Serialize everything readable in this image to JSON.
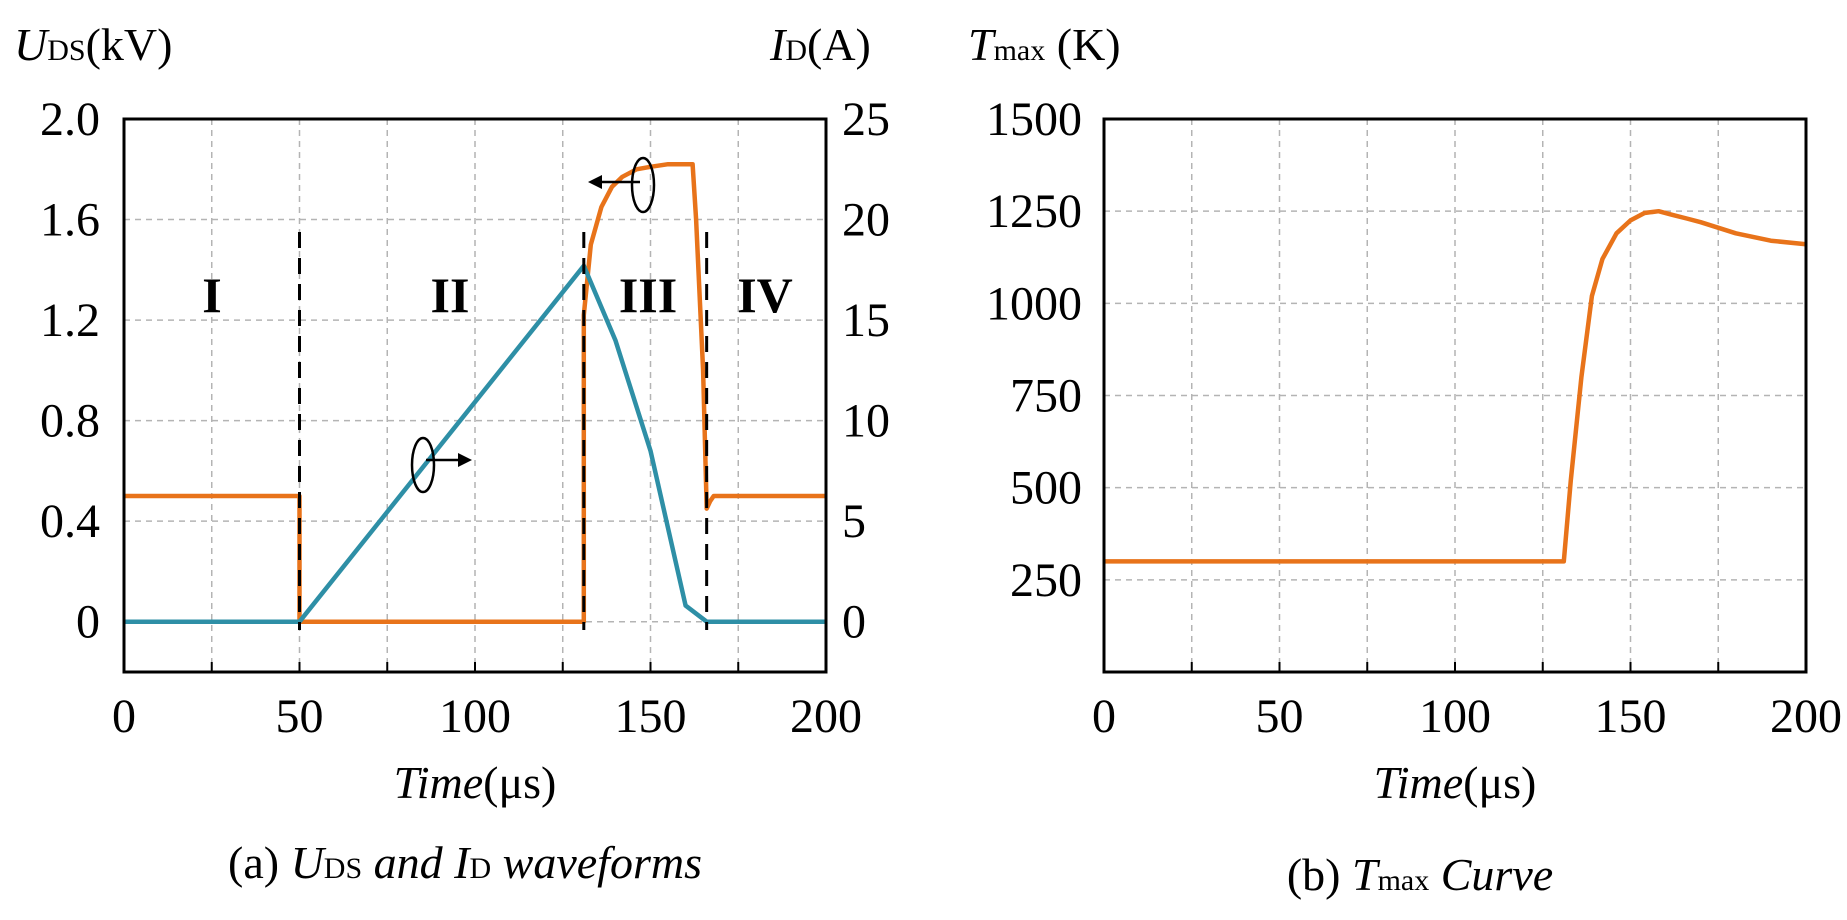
{
  "colors": {
    "orange": "#E8731A",
    "teal": "#2E8FA6",
    "grid": "#b4b4b4",
    "axis": "#000000"
  },
  "panel_a": {
    "caption": {
      "prefix": "(a) ",
      "u": "U",
      "u_sub": "DS",
      "mid": " and ",
      "i": "I",
      "i_sub": "D",
      "suffix": " waveforms"
    },
    "ylabel_left": {
      "main": "U",
      "sub": "DS",
      "unit": "(kV)"
    },
    "ylabel_right": {
      "main": "I",
      "sub": "D",
      "unit": "(A)"
    },
    "xlabel": {
      "main": "Time",
      "unit": "(μs)"
    },
    "regions": [
      "I",
      "II",
      "III",
      "IV"
    ]
  },
  "panel_b": {
    "caption": {
      "prefix": "(b) ",
      "t": "T",
      "t_sub": "max",
      "suffix": " Curve"
    },
    "ylabel": {
      "main": "T",
      "sub": "max",
      "unit": " (K)"
    },
    "xlabel": {
      "main": "Time",
      "unit": "(μs)"
    }
  },
  "chart_data": [
    {
      "type": "line",
      "x_ticks": [
        "0",
        "50",
        "100",
        "150",
        "200"
      ],
      "xlim": [
        0,
        200
      ],
      "y_left_ticks": [
        "0",
        "0.4",
        "0.8",
        "1.2",
        "1.6",
        "2.0"
      ],
      "ylim_left": [
        -0.2,
        2.0
      ],
      "y_right_ticks": [
        "0",
        "5",
        "10",
        "15",
        "20",
        "25"
      ],
      "ylim_right": [
        -2.5,
        25
      ],
      "grid": true,
      "boundaries": [
        50,
        131,
        166
      ],
      "series": [
        {
          "axis": "left",
          "color": "#E8731A",
          "x": [
            0,
            50,
            50,
            131,
            131,
            133,
            136,
            139,
            142,
            146,
            150,
            155,
            160,
            162,
            163,
            164,
            165,
            166,
            167,
            168,
            169,
            200
          ],
          "y": [
            0.5,
            0.5,
            0,
            0,
            1.22,
            1.5,
            1.65,
            1.73,
            1.77,
            1.8,
            1.81,
            1.82,
            1.82,
            1.82,
            1.6,
            1.3,
            1.0,
            0.45,
            0.48,
            0.5,
            0.5,
            0.5
          ]
        },
        {
          "axis": "right",
          "color": "#2E8FA6",
          "x": [
            0,
            50,
            131,
            140,
            150,
            160,
            166,
            200
          ],
          "y": [
            0,
            0,
            17.7,
            14,
            8.5,
            0.8,
            0,
            0
          ]
        }
      ]
    },
    {
      "type": "line",
      "x_ticks": [
        "0",
        "50",
        "100",
        "150",
        "200"
      ],
      "xlim": [
        0,
        200
      ],
      "y_ticks": [
        "250",
        "500",
        "750",
        "1000",
        "1250",
        "1500"
      ],
      "ylim": [
        0,
        1500
      ],
      "grid": true,
      "series": [
        {
          "color": "#E8731A",
          "x": [
            0,
            130,
            131,
            133,
            136,
            139,
            142,
            146,
            150,
            154,
            158,
            162,
            166,
            170,
            180,
            190,
            200
          ],
          "y": [
            300,
            300,
            300,
            520,
            800,
            1020,
            1120,
            1190,
            1225,
            1245,
            1250,
            1240,
            1230,
            1220,
            1190,
            1170,
            1160
          ]
        }
      ]
    }
  ]
}
